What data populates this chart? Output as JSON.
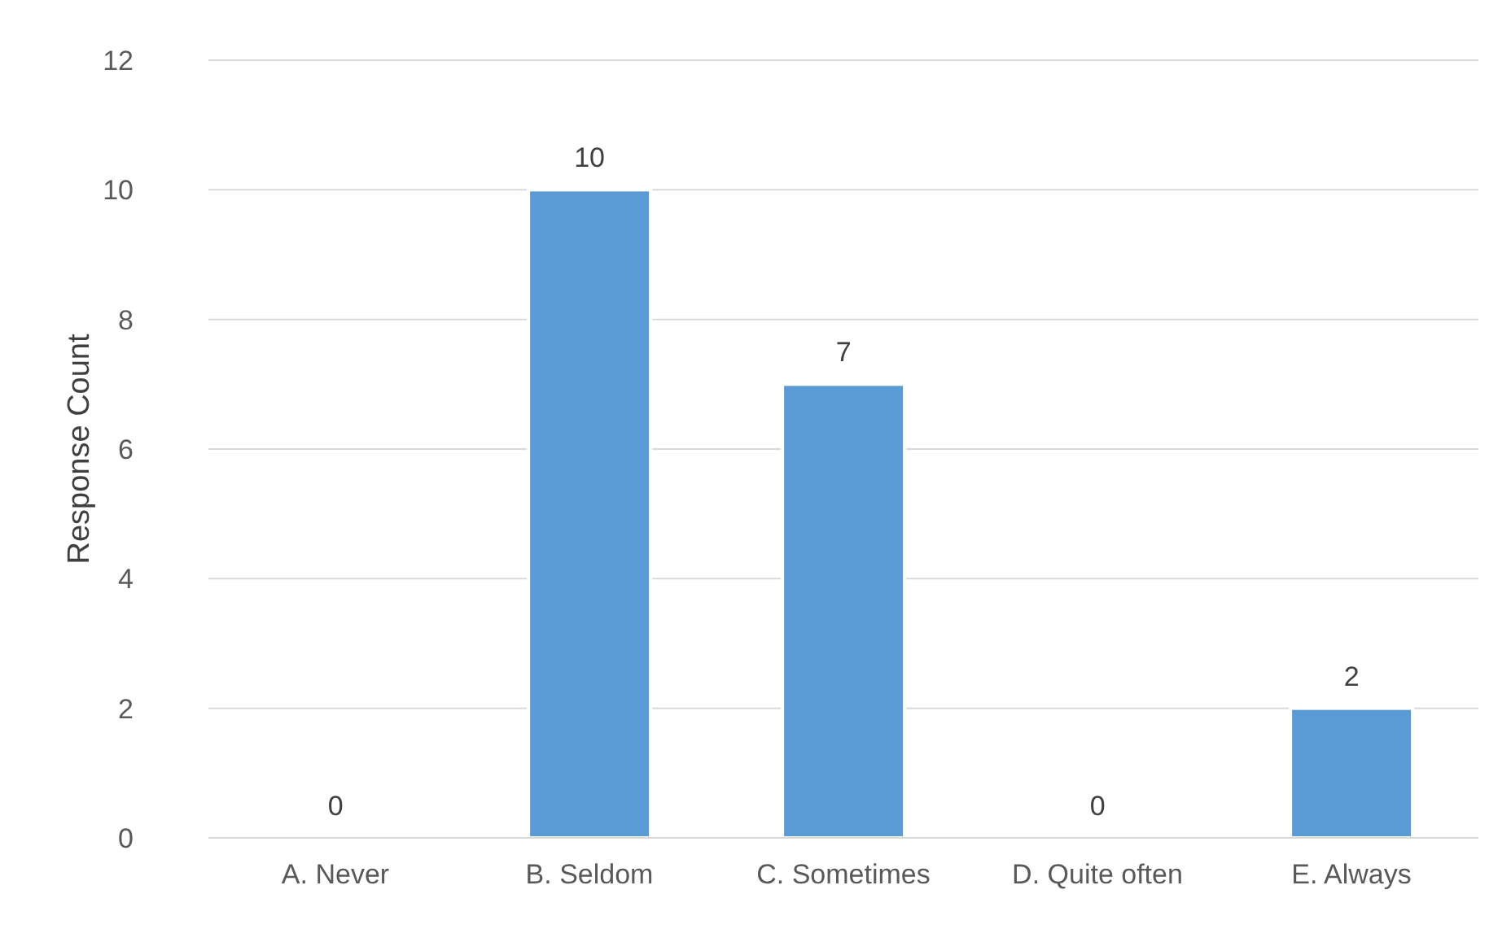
{
  "chart_data": {
    "type": "bar",
    "ylabel": "Response Count",
    "categories": [
      "A. Never",
      "B. Seldom",
      "C. Sometimes",
      "D. Quite often",
      "E. Always"
    ],
    "values": [
      0,
      10,
      7,
      0,
      2
    ],
    "color": "#5b9bd5",
    "ylim": [
      0,
      12
    ],
    "yticks": [
      0,
      2,
      4,
      6,
      8,
      10,
      12
    ],
    "grid": "y",
    "data_labels": true
  }
}
